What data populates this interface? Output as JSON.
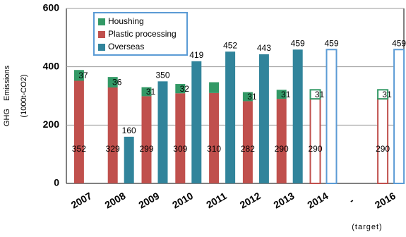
{
  "chart_data": {
    "type": "bar",
    "y_label": [
      "GHG　Emissions",
      "(1000t-CO2)"
    ],
    "annotation": "(target)",
    "categories": [
      "2007",
      "2008",
      "2009",
      "2010",
      "2011",
      "2012",
      "2013",
      "2014",
      "-",
      "2016"
    ],
    "hollow": [
      false,
      false,
      false,
      false,
      false,
      false,
      false,
      true,
      false,
      true
    ],
    "series": [
      {
        "name": "Plastic processing",
        "color": "#c0504d",
        "stack": "own",
        "values": [
          352,
          329,
          299,
          309,
          310,
          282,
          290,
          290,
          null,
          290
        ]
      },
      {
        "name": "Houshing",
        "color": "#339966",
        "stack": "own",
        "values": [
          37,
          36,
          31,
          32,
          37,
          31,
          31,
          31,
          null,
          31
        ],
        "value_labels": [
          37,
          36,
          31,
          32,
          null,
          31,
          31,
          31,
          null,
          31
        ]
      },
      {
        "name": "Overseas",
        "color": "#31849b",
        "hollow_color": "#5b9bd5",
        "stack": "overseas",
        "values": [
          null,
          160,
          350,
          419,
          452,
          443,
          459,
          459,
          null,
          459
        ]
      }
    ],
    "legend_order": [
      1,
      0,
      2
    ],
    "ylim": [
      0,
      600
    ],
    "yticks": [
      0,
      200,
      400,
      600
    ],
    "grid": true
  }
}
